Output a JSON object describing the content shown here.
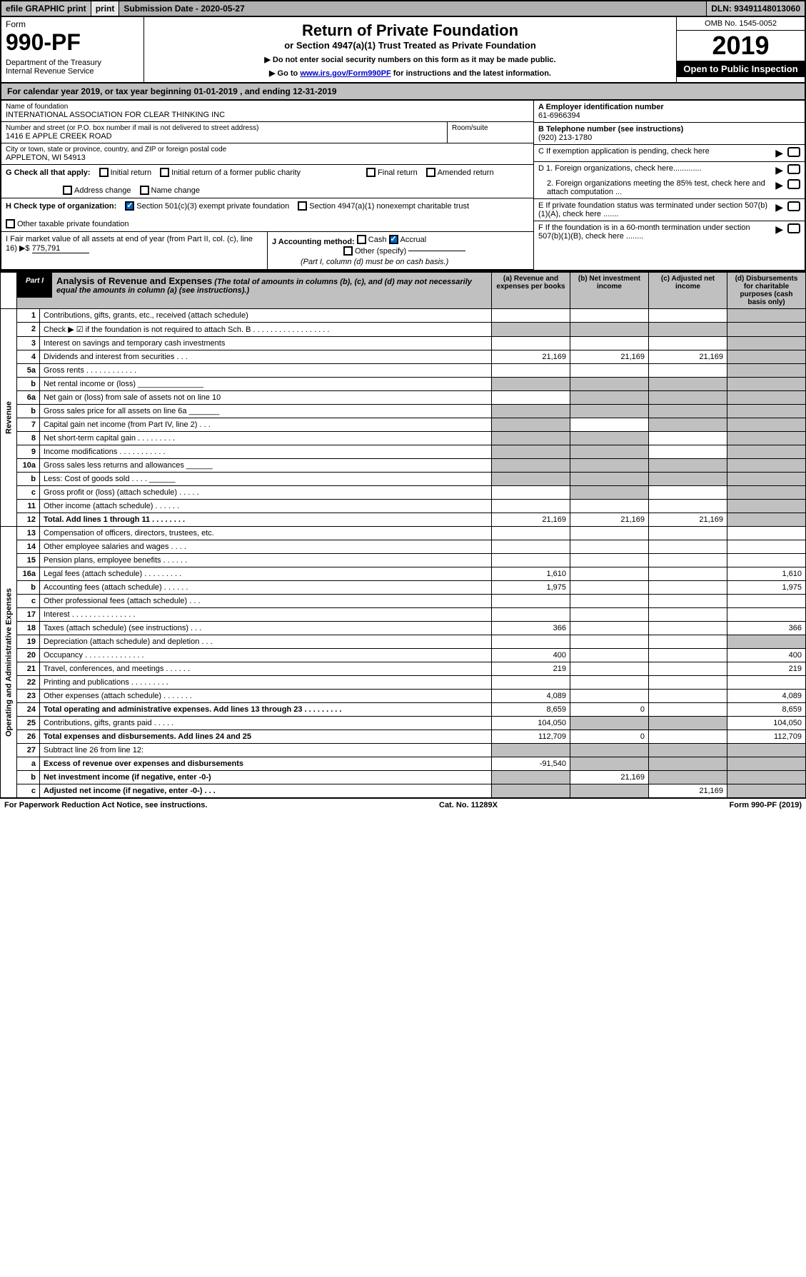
{
  "top": {
    "efile": "efile GRAPHIC print",
    "sub_date_label": "Submission Date - 2020-05-27",
    "dln": "DLN: 93491148013060"
  },
  "header": {
    "form_label": "Form",
    "form_number": "990-PF",
    "dept": "Department of the Treasury",
    "irs": "Internal Revenue Service",
    "title": "Return of Private Foundation",
    "subtitle": "or Section 4947(a)(1) Trust Treated as Private Foundation",
    "note1": "▶ Do not enter social security numbers on this form as it may be made public.",
    "note2_pre": "▶ Go to ",
    "note2_link": "www.irs.gov/Form990PF",
    "note2_post": " for instructions and the latest information.",
    "omb": "OMB No. 1545-0052",
    "year": "2019",
    "open": "Open to Public Inspection"
  },
  "calyear": "For calendar year 2019, or tax year beginning 01-01-2019                    , and ending 12-31-2019",
  "info": {
    "name_label": "Name of foundation",
    "name": "INTERNATIONAL ASSOCIATION FOR CLEAR THINKING INC",
    "street_label": "Number and street (or P.O. box number if mail is not delivered to street address)",
    "street": "1416 E APPLE CREEK ROAD",
    "room_label": "Room/suite",
    "city_label": "City or town, state or province, country, and ZIP or foreign postal code",
    "city": "APPLETON, WI  54913",
    "a_label": "A Employer identification number",
    "a_val": "61-6966394",
    "b_label": "B Telephone number (see instructions)",
    "b_val": "(920) 213-1780",
    "c_label": "C If exemption application is pending, check here",
    "d1": "D 1. Foreign organizations, check here.............",
    "d2": "2. Foreign organizations meeting the 85% test, check here and attach computation ...",
    "e": "E  If private foundation status was terminated under section 507(b)(1)(A), check here .......",
    "f": "F  If the foundation is in a 60-month termination under section 507(b)(1)(B), check here ........"
  },
  "g": {
    "label": "G Check all that apply:",
    "initial": "Initial return",
    "initial_former": "Initial return of a former public charity",
    "final": "Final return",
    "amended": "Amended return",
    "address": "Address change",
    "name_change": "Name change"
  },
  "h": {
    "label": "H Check type of organization:",
    "501c3": "Section 501(c)(3) exempt private foundation",
    "4947": "Section 4947(a)(1) nonexempt charitable trust",
    "other_tax": "Other taxable private foundation"
  },
  "i": {
    "label": "I Fair market value of all assets at end of year (from Part II, col. (c), line 16) ▶$",
    "val": "775,791"
  },
  "j": {
    "label": "J Accounting method:",
    "cash": "Cash",
    "accrual": "Accrual",
    "other": "Other (specify)",
    "note": "(Part I, column (d) must be on cash basis.)"
  },
  "part1": {
    "label": "Part I",
    "title": "Analysis of Revenue and Expenses",
    "sub": "(The total of amounts in columns (b), (c), and (d) may not necessarily equal the amounts in column (a) (see instructions).)",
    "col_a": "(a)   Revenue and expenses per books",
    "col_b": "(b)  Net investment income",
    "col_c": "(c)  Adjusted net income",
    "col_d": "(d)  Disbursements for charitable purposes (cash basis only)"
  },
  "sections": {
    "revenue": "Revenue",
    "expenses": "Operating and Administrative Expenses"
  },
  "rows": [
    {
      "n": "1",
      "d": "Contributions, gifts, grants, etc., received (attach schedule)",
      "a": "",
      "b": "",
      "c": "",
      "dd": "",
      "sa": false,
      "sb": false,
      "sc": false,
      "sd": true
    },
    {
      "n": "2",
      "d": "Check ▶ ☑ if the foundation is not required to attach Sch. B   .  .  .  .  .  .  .  .  .  .  .  .  .  .  .  .  .  .",
      "a": "",
      "b": "",
      "c": "",
      "dd": "",
      "sa": true,
      "sb": true,
      "sc": true,
      "sd": true
    },
    {
      "n": "3",
      "d": "Interest on savings and temporary cash investments",
      "a": "",
      "b": "",
      "c": "",
      "dd": "",
      "sa": false,
      "sb": false,
      "sc": false,
      "sd": true
    },
    {
      "n": "4",
      "d": "Dividends and interest from securities       .   .   .",
      "a": "21,169",
      "b": "21,169",
      "c": "21,169",
      "dd": "",
      "sa": false,
      "sb": false,
      "sc": false,
      "sd": true
    },
    {
      "n": "5a",
      "d": "Gross rents           .  .  .  .  .  .  .  .  .  .  .  .",
      "a": "",
      "b": "",
      "c": "",
      "dd": "",
      "sa": false,
      "sb": false,
      "sc": false,
      "sd": true
    },
    {
      "n": "b",
      "d": "Net rental income or (loss)     _______________",
      "a": "",
      "b": "",
      "c": "",
      "dd": "",
      "sa": true,
      "sb": true,
      "sc": true,
      "sd": true
    },
    {
      "n": "6a",
      "d": "Net gain or (loss) from sale of assets not on line 10",
      "a": "",
      "b": "",
      "c": "",
      "dd": "",
      "sa": false,
      "sb": true,
      "sc": true,
      "sd": true
    },
    {
      "n": "b",
      "d": "Gross sales price for all assets on line 6a  _______",
      "a": "",
      "b": "",
      "c": "",
      "dd": "",
      "sa": true,
      "sb": true,
      "sc": true,
      "sd": true
    },
    {
      "n": "7",
      "d": "Capital gain net income (from Part IV, line 2)    .   .   .",
      "a": "",
      "b": "",
      "c": "",
      "dd": "",
      "sa": true,
      "sb": false,
      "sc": true,
      "sd": true
    },
    {
      "n": "8",
      "d": "Net short-term capital gain   .  .  .  .  .  .  .  .  .",
      "a": "",
      "b": "",
      "c": "",
      "dd": "",
      "sa": true,
      "sb": true,
      "sc": false,
      "sd": true
    },
    {
      "n": "9",
      "d": "Income modifications  .  .  .  .  .  .  .  .  .  .  .",
      "a": "",
      "b": "",
      "c": "",
      "dd": "",
      "sa": true,
      "sb": true,
      "sc": false,
      "sd": true
    },
    {
      "n": "10a",
      "d": "Gross sales less returns and allowances  ______",
      "a": "",
      "b": "",
      "c": "",
      "dd": "",
      "sa": true,
      "sb": true,
      "sc": true,
      "sd": true
    },
    {
      "n": "b",
      "d": "Less: Cost of goods sold       .   .   .   .   ______",
      "a": "",
      "b": "",
      "c": "",
      "dd": "",
      "sa": true,
      "sb": true,
      "sc": true,
      "sd": true
    },
    {
      "n": "c",
      "d": "Gross profit or (loss) (attach schedule)    .   .   .   .   .",
      "a": "",
      "b": "",
      "c": "",
      "dd": "",
      "sa": false,
      "sb": true,
      "sc": false,
      "sd": true
    },
    {
      "n": "11",
      "d": "Other income (attach schedule)      .   .   .   .   .   .",
      "a": "",
      "b": "",
      "c": "",
      "dd": "",
      "sa": false,
      "sb": false,
      "sc": false,
      "sd": true
    },
    {
      "n": "12",
      "d": "Total. Add lines 1 through 11    .   .   .   .   .   .   .   .",
      "a": "21,169",
      "b": "21,169",
      "c": "21,169",
      "dd": "",
      "sa": false,
      "sb": false,
      "sc": false,
      "sd": true,
      "bold": true
    },
    {
      "n": "13",
      "d": "Compensation of officers, directors, trustees, etc.",
      "a": "",
      "b": "",
      "c": "",
      "dd": "",
      "sa": false,
      "sb": false,
      "sc": false,
      "sd": false
    },
    {
      "n": "14",
      "d": "Other employee salaries and wages      .   .   .   .",
      "a": "",
      "b": "",
      "c": "",
      "dd": "",
      "sa": false,
      "sb": false,
      "sc": false,
      "sd": false
    },
    {
      "n": "15",
      "d": "Pension plans, employee benefits    .   .   .   .   .   .",
      "a": "",
      "b": "",
      "c": "",
      "dd": "",
      "sa": false,
      "sb": false,
      "sc": false,
      "sd": false
    },
    {
      "n": "16a",
      "d": "Legal fees (attach schedule)  .  .  .  .  .  .  .  .  .",
      "a": "1,610",
      "b": "",
      "c": "",
      "dd": "1,610",
      "sa": false,
      "sb": false,
      "sc": false,
      "sd": false
    },
    {
      "n": "b",
      "d": "Accounting fees (attach schedule)   .   .   .   .   .   .",
      "a": "1,975",
      "b": "",
      "c": "",
      "dd": "1,975",
      "sa": false,
      "sb": false,
      "sc": false,
      "sd": false
    },
    {
      "n": "c",
      "d": "Other professional fees (attach schedule)      .   .   .",
      "a": "",
      "b": "",
      "c": "",
      "dd": "",
      "sa": false,
      "sb": false,
      "sc": false,
      "sd": false
    },
    {
      "n": "17",
      "d": "Interest   .  .  .  .  .  .  .  .  .  .  .  .  .  .  .",
      "a": "",
      "b": "",
      "c": "",
      "dd": "",
      "sa": false,
      "sb": false,
      "sc": false,
      "sd": false
    },
    {
      "n": "18",
      "d": "Taxes (attach schedule) (see instructions)      .   .   .",
      "a": "366",
      "b": "",
      "c": "",
      "dd": "366",
      "sa": false,
      "sb": false,
      "sc": false,
      "sd": false
    },
    {
      "n": "19",
      "d": "Depreciation (attach schedule) and depletion    .   .   .",
      "a": "",
      "b": "",
      "c": "",
      "dd": "",
      "sa": false,
      "sb": false,
      "sc": false,
      "sd": true
    },
    {
      "n": "20",
      "d": "Occupancy  .  .  .  .  .  .  .  .  .  .  .  .  .  .",
      "a": "400",
      "b": "",
      "c": "",
      "dd": "400",
      "sa": false,
      "sb": false,
      "sc": false,
      "sd": false
    },
    {
      "n": "21",
      "d": "Travel, conferences, and meetings   .   .   .   .   .   .",
      "a": "219",
      "b": "",
      "c": "",
      "dd": "219",
      "sa": false,
      "sb": false,
      "sc": false,
      "sd": false
    },
    {
      "n": "22",
      "d": "Printing and publications   .  .  .  .  .  .  .  .  .",
      "a": "",
      "b": "",
      "c": "",
      "dd": "",
      "sa": false,
      "sb": false,
      "sc": false,
      "sd": false
    },
    {
      "n": "23",
      "d": "Other expenses (attach schedule)   .   .   .   .   .   .   .",
      "a": "4,089",
      "b": "",
      "c": "",
      "dd": "4,089",
      "sa": false,
      "sb": false,
      "sc": false,
      "sd": false
    },
    {
      "n": "24",
      "d": "Total operating and administrative expenses. Add lines 13 through 23   .   .   .   .   .   .   .   .   .",
      "a": "8,659",
      "b": "0",
      "c": "",
      "dd": "8,659",
      "sa": false,
      "sb": false,
      "sc": false,
      "sd": false,
      "bold": true
    },
    {
      "n": "25",
      "d": "Contributions, gifts, grants paid       .   .   .   .   .",
      "a": "104,050",
      "b": "",
      "c": "",
      "dd": "104,050",
      "sa": false,
      "sb": true,
      "sc": true,
      "sd": false
    },
    {
      "n": "26",
      "d": "Total expenses and disbursements. Add lines 24 and 25",
      "a": "112,709",
      "b": "0",
      "c": "",
      "dd": "112,709",
      "sa": false,
      "sb": false,
      "sc": false,
      "sd": false,
      "bold": true
    },
    {
      "n": "27",
      "d": "Subtract line 26 from line 12:",
      "a": "",
      "b": "",
      "c": "",
      "dd": "",
      "sa": true,
      "sb": true,
      "sc": true,
      "sd": true
    },
    {
      "n": "a",
      "d": "Excess of revenue over expenses and disbursements",
      "a": "-91,540",
      "b": "",
      "c": "",
      "dd": "",
      "sa": false,
      "sb": true,
      "sc": true,
      "sd": true,
      "bold": true
    },
    {
      "n": "b",
      "d": "Net investment income (if negative, enter -0-)",
      "a": "",
      "b": "21,169",
      "c": "",
      "dd": "",
      "sa": true,
      "sb": false,
      "sc": true,
      "sd": true,
      "bold": true
    },
    {
      "n": "c",
      "d": "Adjusted net income (if negative, enter -0-)    .   .   .",
      "a": "",
      "b": "",
      "c": "21,169",
      "dd": "",
      "sa": true,
      "sb": true,
      "sc": false,
      "sd": true,
      "bold": true
    }
  ],
  "footer": {
    "left": "For Paperwork Reduction Act Notice, see instructions.",
    "mid": "Cat. No. 11289X",
    "right": "Form 990-PF (2019)"
  }
}
